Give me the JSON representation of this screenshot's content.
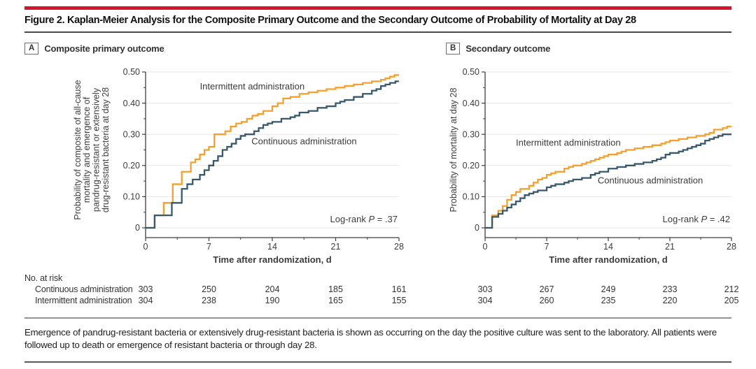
{
  "page": {
    "title": "Figure 2. Kaplan-Meier Analysis for the Composite Primary Outcome and the Secondary Outcome of Probability of Mortality at Day 28",
    "footnote": "Emergence of pandrug-resistant bacteria or extensively drug-resistant bacteria is shown as occurring on the day the positive culture was sent to the laboratory. All patients were followed up to death or emergence of resistant bacteria or through day 28."
  },
  "colors": {
    "accent_red": "#D7132E",
    "axis": "#3F3F3F",
    "grid": "#E7E7E5",
    "text": "#3C3C3C",
    "intermittent_orange": "#F5A02E",
    "continuous_teal": "#37596B"
  },
  "risk_table": {
    "heading": "No. at risk",
    "rows": [
      {
        "label": "Continuous administration",
        "panelA": [
          303,
          250,
          204,
          185,
          161
        ],
        "panelB": [
          303,
          267,
          249,
          233,
          212
        ]
      },
      {
        "label": "Intermittent administration",
        "panelA": [
          304,
          238,
          190,
          165,
          155
        ],
        "panelB": [
          304,
          260,
          235,
          220,
          205
        ]
      }
    ]
  },
  "chart_data": [
    {
      "type": "line",
      "subtype": "kaplan-meier-step",
      "panel_label": "A",
      "panel_title": "Composite primary outcome",
      "xlabel": "Time after randomization, d",
      "ylabel_lines": [
        "Probability of composite of all-cause",
        "mortality and emergence of",
        "pandrug-resistant or extensively",
        "drug-resistant bacteria at day 28"
      ],
      "xlim": [
        0,
        28
      ],
      "ylim": [
        0,
        0.5
      ],
      "xticks": [
        0,
        7,
        14,
        21,
        28
      ],
      "yticks": [
        0,
        0.1,
        0.2,
        0.3,
        0.4,
        0.5
      ],
      "ytick_labels": [
        "0",
        "0.10",
        "0.20",
        "0.30",
        "0.40",
        "0.50"
      ],
      "grid": true,
      "logrank": {
        "pre": "Log-rank ",
        "p": "P",
        "post": " = .37"
      },
      "series": [
        {
          "name": "Intermittent administration",
          "color": "#F5A02E",
          "label_pos": {
            "x": 6.0,
            "y": 0.444
          },
          "x": [
            0,
            1,
            2,
            3,
            4,
            5,
            5.5,
            6,
            6.5,
            7,
            7.6,
            8.8,
            9.4,
            10,
            10.6,
            11.2,
            11.8,
            12.4,
            13,
            14,
            14.6,
            15.2,
            16,
            17,
            18,
            19,
            20,
            21,
            22,
            23,
            24,
            25,
            26,
            26.5,
            27,
            27.5,
            28
          ],
          "y": [
            0,
            0.04,
            0.08,
            0.14,
            0.18,
            0.21,
            0.22,
            0.235,
            0.25,
            0.26,
            0.3,
            0.31,
            0.325,
            0.335,
            0.34,
            0.35,
            0.36,
            0.365,
            0.375,
            0.39,
            0.4,
            0.415,
            0.42,
            0.43,
            0.435,
            0.44,
            0.445,
            0.45,
            0.455,
            0.46,
            0.465,
            0.47,
            0.475,
            0.48,
            0.485,
            0.49,
            0.49
          ]
        },
        {
          "name": "Continuous administration",
          "color": "#37596B",
          "label_pos": {
            "x": 11.7,
            "y": 0.268
          },
          "x": [
            0,
            1,
            2.9,
            4,
            4.6,
            5.2,
            6,
            6.5,
            7,
            7.5,
            8,
            8.5,
            9,
            9.5,
            10,
            10.5,
            11,
            12,
            12.5,
            13,
            13.5,
            14,
            15,
            16,
            16.5,
            17,
            18,
            19,
            20,
            21,
            21.5,
            22,
            23,
            24,
            25,
            25.5,
            26,
            26.5,
            27,
            27.6,
            28
          ],
          "y": [
            0,
            0.04,
            0.08,
            0.125,
            0.14,
            0.155,
            0.17,
            0.185,
            0.2,
            0.215,
            0.23,
            0.25,
            0.26,
            0.27,
            0.285,
            0.295,
            0.3,
            0.31,
            0.32,
            0.33,
            0.335,
            0.34,
            0.35,
            0.355,
            0.36,
            0.37,
            0.375,
            0.385,
            0.39,
            0.4,
            0.405,
            0.41,
            0.42,
            0.43,
            0.44,
            0.445,
            0.455,
            0.46,
            0.465,
            0.47,
            0.47
          ]
        }
      ]
    },
    {
      "type": "line",
      "subtype": "kaplan-meier-step",
      "panel_label": "B",
      "panel_title": "Secondary outcome",
      "xlabel": "Time after randomization, d",
      "ylabel_lines": [
        "Probability of mortality at day 28"
      ],
      "xlim": [
        0,
        28
      ],
      "ylim": [
        0,
        0.5
      ],
      "xticks": [
        0,
        7,
        14,
        21,
        28
      ],
      "yticks": [
        0,
        0.1,
        0.2,
        0.3,
        0.4,
        0.5
      ],
      "ytick_labels": [
        "0",
        "0.10",
        "0.20",
        "0.30",
        "0.40",
        "0.50"
      ],
      "grid": true,
      "logrank": {
        "pre": "Log-rank ",
        "p": "P",
        "post": " = .42"
      },
      "series": [
        {
          "name": "Intermittent administration",
          "color": "#F5A02E",
          "label_pos": {
            "x": 3.5,
            "y": 0.263
          },
          "x": [
            0,
            0.8,
            1.5,
            2,
            2.5,
            3,
            3.5,
            4,
            5,
            5.5,
            6,
            6.5,
            7,
            7.5,
            8,
            9,
            9.5,
            10,
            11,
            11.5,
            12,
            12.5,
            13,
            13.5,
            14,
            15,
            15.5,
            16,
            17,
            18,
            19,
            20,
            20.5,
            21,
            22,
            23,
            24,
            25,
            25.5,
            26,
            27,
            27.5,
            28
          ],
          "y": [
            0,
            0.04,
            0.055,
            0.07,
            0.09,
            0.105,
            0.115,
            0.125,
            0.135,
            0.145,
            0.155,
            0.16,
            0.17,
            0.175,
            0.18,
            0.19,
            0.195,
            0.2,
            0.205,
            0.21,
            0.215,
            0.22,
            0.225,
            0.23,
            0.235,
            0.24,
            0.245,
            0.25,
            0.255,
            0.26,
            0.265,
            0.27,
            0.275,
            0.28,
            0.285,
            0.29,
            0.295,
            0.3,
            0.305,
            0.315,
            0.32,
            0.325,
            0.325
          ]
        },
        {
          "name": "Continuous administration",
          "color": "#37596B",
          "label_pos": {
            "x": 12.8,
            "y": 0.142
          },
          "x": [
            0,
            0.8,
            1.5,
            2,
            2.5,
            3,
            3.5,
            4,
            4.5,
            5,
            5.5,
            6,
            7,
            7.5,
            8,
            9,
            9.5,
            10,
            11,
            12,
            12.5,
            13,
            14,
            15,
            16,
            17,
            18,
            19,
            19.5,
            20,
            20.5,
            21,
            22,
            22.5,
            23,
            23.5,
            24,
            24.5,
            25,
            25.5,
            26,
            26.5,
            27,
            28
          ],
          "y": [
            0,
            0.035,
            0.045,
            0.055,
            0.065,
            0.075,
            0.085,
            0.095,
            0.105,
            0.11,
            0.115,
            0.12,
            0.13,
            0.135,
            0.14,
            0.145,
            0.15,
            0.155,
            0.16,
            0.17,
            0.175,
            0.18,
            0.19,
            0.195,
            0.2,
            0.205,
            0.21,
            0.215,
            0.22,
            0.225,
            0.235,
            0.24,
            0.245,
            0.25,
            0.255,
            0.26,
            0.265,
            0.27,
            0.28,
            0.285,
            0.29,
            0.295,
            0.3,
            0.3
          ]
        }
      ]
    }
  ]
}
